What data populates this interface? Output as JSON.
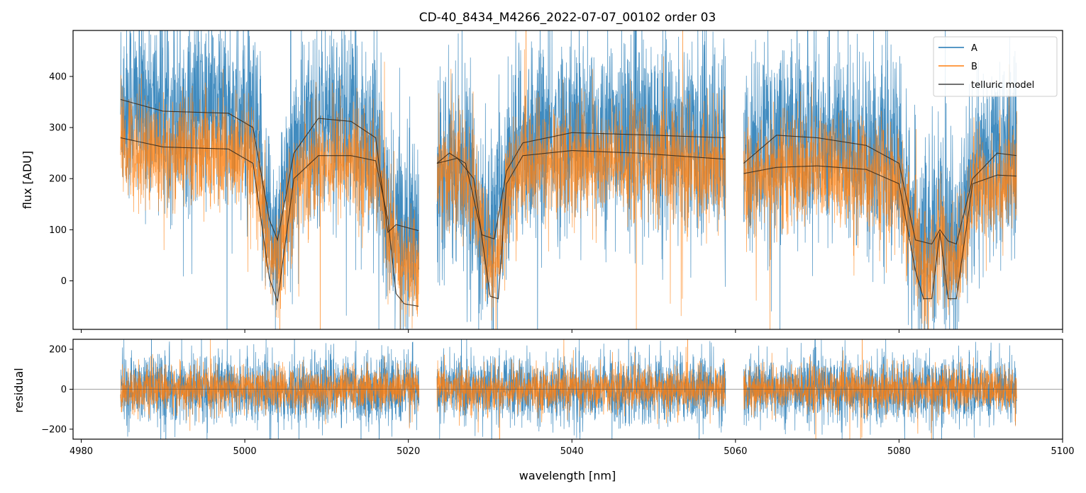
{
  "chart_data": [
    {
      "type": "line",
      "panel": "top",
      "title": "CD-40_8434_M4266_2022-07-07_00102  order 03",
      "xlabel": "",
      "ylabel": "flux [ADU]",
      "xlim": [
        4979,
        5100
      ],
      "ylim": [
        -95,
        490
      ],
      "yticks": [
        0,
        100,
        200,
        300,
        400
      ],
      "xticks": [
        4980,
        5000,
        5020,
        5040,
        5060,
        5080,
        5100
      ],
      "segments": [
        [
          4984.8,
          5021.3
        ],
        [
          5023.5,
          5058.8
        ],
        [
          5061.0,
          5094.4
        ]
      ],
      "legend": {
        "position": "top-right",
        "entries": [
          "A",
          "B",
          "telluric model"
        ]
      },
      "series": [
        {
          "name": "A",
          "color": "#1f77b4",
          "continuum": [
            360,
            335,
            315,
            300
          ],
          "noise_sigma": 95
        },
        {
          "name": "B",
          "color": "#ff7f0e",
          "continuum": [
            280,
            258,
            245,
            228
          ],
          "noise_sigma": 55
        },
        {
          "name": "telluric model",
          "color": "#444444",
          "samples_upper": [
            [
              4984.8,
              355
            ],
            [
              4990,
              332
            ],
            [
              4998,
              328
            ],
            [
              5001,
              300
            ],
            [
              5003,
              120
            ],
            [
              5004,
              80
            ],
            [
              5006,
              250
            ],
            [
              5009,
              318
            ],
            [
              5013,
              312
            ],
            [
              5016,
              280
            ],
            [
              5017.5,
              95
            ],
            [
              5018.5,
              110
            ],
            [
              5021.3,
              98
            ],
            [
              5023.5,
              230
            ],
            [
              5025,
              250
            ],
            [
              5027,
              230
            ],
            [
              5029,
              90
            ],
            [
              5030.5,
              82
            ],
            [
              5032,
              215
            ],
            [
              5034,
              270
            ],
            [
              5040,
              290
            ],
            [
              5050,
              285
            ],
            [
              5058.8,
              280
            ],
            [
              5061,
              230
            ],
            [
              5065,
              285
            ],
            [
              5070,
              280
            ],
            [
              5076,
              265
            ],
            [
              5080,
              230
            ],
            [
              5082,
              80
            ],
            [
              5084,
              72
            ],
            [
              5085,
              100
            ],
            [
              5086,
              78
            ],
            [
              5087,
              72
            ],
            [
              5089,
              200
            ],
            [
              5092,
              250
            ],
            [
              5094.4,
              245
            ]
          ],
          "samples_lower": [
            [
              4984.8,
              280
            ],
            [
              4990,
              262
            ],
            [
              4998,
              258
            ],
            [
              5001,
              230
            ],
            [
              5003,
              5
            ],
            [
              5004,
              -40
            ],
            [
              5006,
              200
            ],
            [
              5009,
              245
            ],
            [
              5013,
              245
            ],
            [
              5016,
              235
            ],
            [
              5017.5,
              120
            ],
            [
              5018.5,
              -25
            ],
            [
              5019.5,
              -45
            ],
            [
              5021.3,
              -50
            ],
            [
              5023.5,
              230
            ],
            [
              5026,
              240
            ],
            [
              5028,
              200
            ],
            [
              5030,
              -30
            ],
            [
              5031,
              -35
            ],
            [
              5032,
              190
            ],
            [
              5034,
              245
            ],
            [
              5040,
              255
            ],
            [
              5048,
              250
            ],
            [
              5058.8,
              238
            ],
            [
              5061,
              210
            ],
            [
              5065,
              222
            ],
            [
              5070,
              225
            ],
            [
              5076,
              218
            ],
            [
              5080,
              190
            ],
            [
              5082,
              20
            ],
            [
              5083,
              -35
            ],
            [
              5084,
              -35
            ],
            [
              5085,
              95
            ],
            [
              5086,
              -35
            ],
            [
              5087,
              -35
            ],
            [
              5089,
              190
            ],
            [
              5092,
              207
            ],
            [
              5094.4,
              205
            ]
          ]
        }
      ]
    },
    {
      "type": "line",
      "panel": "bottom",
      "title": "",
      "xlabel": "wavelength [nm]",
      "ylabel": "residual",
      "xlim": [
        4979,
        5100
      ],
      "ylim": [
        -250,
        250
      ],
      "yticks": [
        -200,
        0,
        200
      ],
      "xticks": [
        4980,
        5000,
        5020,
        5040,
        5060,
        5080,
        5100
      ],
      "reference_line": 0,
      "series": [
        {
          "name": "A",
          "color": "#1f77b4",
          "noise_sigma": 85
        },
        {
          "name": "B",
          "color": "#ff7f0e",
          "noise_sigma": 55
        }
      ]
    }
  ]
}
